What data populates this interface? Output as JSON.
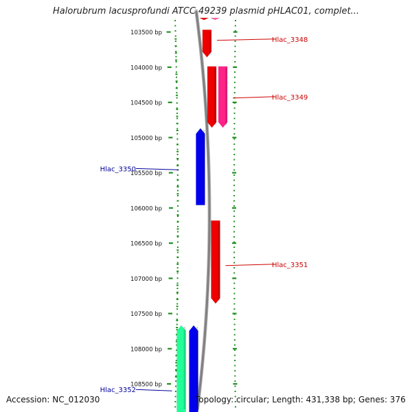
{
  "title": "Halorubrum lacusprofundi ATCC 49239 plasmid pHLAC01, complet...",
  "footer": {
    "accession": "Accession: NC_012030",
    "summary": "Topology: circular; Length: 431,338 bp; Genes: 376"
  },
  "colors": {
    "tick": "#1f8f1f",
    "backbone": "#808080",
    "forward_label": "#cc0000",
    "reverse_label": "#000099"
  },
  "chart_data": {
    "type": "diagram",
    "position_axis": {
      "start": 103300,
      "end": 108900,
      "tick_labels": [
        "103500 bp",
        "104000 bp",
        "104500 bp",
        "105000 bp",
        "105500 bp",
        "106000 bp",
        "106500 bp",
        "107000 bp",
        "107500 bp",
        "108000 bp",
        "108500 bp"
      ],
      "tick_values": [
        103500,
        104000,
        104500,
        105000,
        105500,
        106000,
        106500,
        107000,
        107500,
        108000,
        108500
      ]
    },
    "genes": [
      {
        "name": "",
        "start": 103200,
        "end": 103330,
        "strand": "+",
        "track": 1,
        "color": "#ee0000"
      },
      {
        "name": "",
        "start": 103200,
        "end": 103330,
        "strand": "+",
        "track": 2,
        "color": "#ff66aa"
      },
      {
        "name": "Hlac_3348",
        "start": 103470,
        "end": 103860,
        "strand": "+",
        "track": 1,
        "color": "#ee0000",
        "label_pos": 103600
      },
      {
        "name": "",
        "start": 103990,
        "end": 104860,
        "strand": "+",
        "track": 1,
        "color": "#ee0000"
      },
      {
        "name": "Hlac_3349",
        "start": 103990,
        "end": 104860,
        "strand": "+",
        "track": 2,
        "color": "#ff2288",
        "label_pos": 104420
      },
      {
        "name": "Hlac_3350",
        "start": 104870,
        "end": 105960,
        "strand": "-",
        "track": -1,
        "color": "#0000ee",
        "label_pos": 105440
      },
      {
        "name": "Hlac_3351",
        "start": 106180,
        "end": 107360,
        "strand": "+",
        "track": 1,
        "color": "#ee0000",
        "label_pos": 106800
      },
      {
        "name": "",
        "start": 107670,
        "end": 108900,
        "strand": "-",
        "track": -2,
        "color": "#22ff99"
      },
      {
        "name": "Hlac_3352",
        "start": 107670,
        "end": 108900,
        "strand": "-",
        "track": -1,
        "color": "#0000ee",
        "label_pos": 108580
      }
    ]
  }
}
